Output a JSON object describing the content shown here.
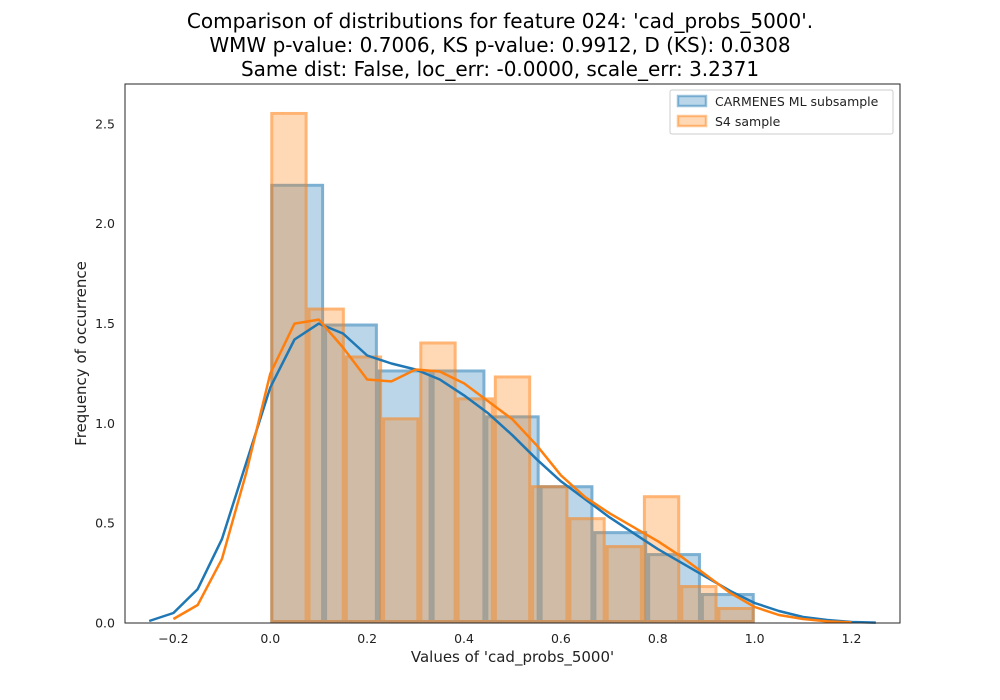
{
  "chart_data": {
    "type": "histogram+kde",
    "title_lines": [
      "Comparison of distributions for feature 024: 'cad_probs_5000'.",
      "WMW p-value: 0.7006, KS p-value: 0.9912, D (KS): 0.0308",
      "Same dist: False, loc_err: -0.0000, scale_err: 3.2371"
    ],
    "xlabel": "Values of 'cad_probs_5000'",
    "ylabel": "Frequency of occurrence",
    "xlim": [
      -0.3,
      1.3
    ],
    "ylim": [
      0,
      2.7
    ],
    "xticks": [
      -0.2,
      0.0,
      0.2,
      0.4,
      0.6,
      0.8,
      1.0,
      1.2
    ],
    "xtick_labels": [
      "−0.2",
      "0.0",
      "0.2",
      "0.4",
      "0.6",
      "0.8",
      "1.0",
      "1.2"
    ],
    "yticks": [
      0.0,
      0.5,
      1.0,
      1.5,
      2.0,
      2.5
    ],
    "ytick_labels": [
      "0.0",
      "0.5",
      "1.0",
      "1.5",
      "2.0",
      "2.5"
    ],
    "grid": false,
    "legend_position": "top-right",
    "series": [
      {
        "name": "CARMENES ML subsample",
        "color": "#1f77b4",
        "bin_edges": [
          0.0,
          0.111,
          0.222,
          0.333,
          0.444,
          0.556,
          0.667,
          0.778,
          0.889,
          1.0
        ],
        "hist": [
          2.2,
          1.5,
          1.27,
          1.27,
          1.04,
          0.69,
          0.46,
          0.35,
          0.15
        ],
        "kde_x": [
          -0.25,
          -0.2,
          -0.15,
          -0.1,
          -0.05,
          0.0,
          0.05,
          0.1,
          0.15,
          0.2,
          0.25,
          0.3,
          0.35,
          0.4,
          0.45,
          0.5,
          0.55,
          0.6,
          0.65,
          0.7,
          0.75,
          0.8,
          0.85,
          0.9,
          0.95,
          1.0,
          1.05,
          1.1,
          1.15,
          1.2,
          1.25
        ],
        "kde_y": [
          0.01,
          0.05,
          0.17,
          0.42,
          0.8,
          1.18,
          1.42,
          1.5,
          1.45,
          1.34,
          1.3,
          1.27,
          1.22,
          1.14,
          1.05,
          0.94,
          0.82,
          0.71,
          0.62,
          0.53,
          0.45,
          0.37,
          0.3,
          0.23,
          0.16,
          0.1,
          0.06,
          0.03,
          0.015,
          0.005,
          0.002
        ]
      },
      {
        "name": "S4 sample",
        "color": "#ff7f0e",
        "bin_edges": [
          0.0,
          0.0769,
          0.1538,
          0.2308,
          0.3077,
          0.3846,
          0.4615,
          0.5385,
          0.6154,
          0.6923,
          0.7692,
          0.8462,
          0.9231,
          1.0
        ],
        "hist": [
          2.56,
          1.58,
          1.34,
          1.03,
          1.41,
          1.13,
          1.24,
          0.69,
          0.53,
          0.39,
          0.64,
          0.19,
          0.08
        ],
        "kde_x": [
          -0.2,
          -0.15,
          -0.1,
          -0.05,
          0.0,
          0.05,
          0.1,
          0.15,
          0.2,
          0.25,
          0.3,
          0.35,
          0.4,
          0.45,
          0.5,
          0.55,
          0.6,
          0.65,
          0.7,
          0.75,
          0.8,
          0.85,
          0.9,
          0.95,
          1.0,
          1.05,
          1.1,
          1.15,
          1.2
        ],
        "kde_y": [
          0.02,
          0.09,
          0.32,
          0.75,
          1.25,
          1.5,
          1.52,
          1.38,
          1.22,
          1.21,
          1.27,
          1.26,
          1.2,
          1.11,
          1.02,
          0.89,
          0.74,
          0.63,
          0.55,
          0.48,
          0.41,
          0.33,
          0.24,
          0.15,
          0.08,
          0.04,
          0.02,
          0.008,
          0.003
        ]
      }
    ]
  }
}
